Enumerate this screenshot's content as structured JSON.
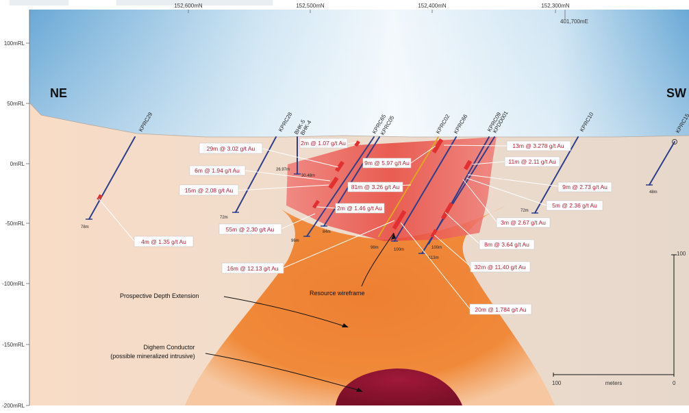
{
  "orientation": {
    "left": "NE",
    "right": "SW"
  },
  "easting_label": "401,700mE",
  "northing_labels": [
    "152,600mN",
    "152,500mN",
    "152,400mN",
    "152,300mN"
  ],
  "elevation_labels": [
    "100mRL",
    "50mRL",
    "0mRL",
    "-50mRL",
    "-100mRL",
    "-150mRL",
    "-200mRL"
  ],
  "holes": [
    "KPRC29",
    "KPRC28",
    "BHK-5",
    "BHK-4",
    "KPRC65",
    "KPRC05",
    "KPRC02",
    "KPRC66",
    "KPRC09",
    "KPDD001",
    "KPRC10",
    "KPRC15"
  ],
  "depths": [
    "78m",
    "72m",
    "26.97m",
    "30.48m",
    "96m",
    "84m",
    "98m",
    "100m",
    "113m",
    "100m",
    "72m",
    "48m"
  ],
  "intercepts": [
    "2m @ 1.07 g/t Au",
    "29m @ 3.02 g/t Au",
    "9m @ 5.97 g/t Au",
    "13m @ 3.278 g/t Au",
    "11m @ 2.11 g/t Au",
    "6m @ 1.94 g/t Au",
    "81m @ 3.26 g/t Au",
    "9m @ 2.73 g/t Au",
    "15m @ 2.08 g/t Au",
    "5m @ 2.36 g/t Au",
    "2m @ 1.46 g/t Au",
    "3m @ 2.67 g/t Au",
    "55m @ 2.30 g/t Au",
    "4m @ 1.35 g/t Au",
    "8m @ 3.64 g/t Au",
    "32m @ 11.40 g/t Au",
    "16m @ 12.13 g/t Au",
    "20m @ 1.784 g/t Au"
  ],
  "annotations": {
    "resource_wireframe": "Resource wireframe",
    "prospective_depth": "Prospective Depth Extension",
    "dighem_title": "Dighem Conductor",
    "dighem_sub": "(possible mineralized intrusive)"
  },
  "scale": {
    "left": "100",
    "unit": "meters",
    "right": "0",
    "vertical": "100"
  },
  "colors": {
    "sky": "#7fb6dc",
    "ground": "#f4dccb",
    "orange_zone": "#f08a3a",
    "wireframe": "#e8463c",
    "intrusive": "#8b1230",
    "drillhole": "#2c3e8c",
    "callout": "#b21e2f"
  }
}
